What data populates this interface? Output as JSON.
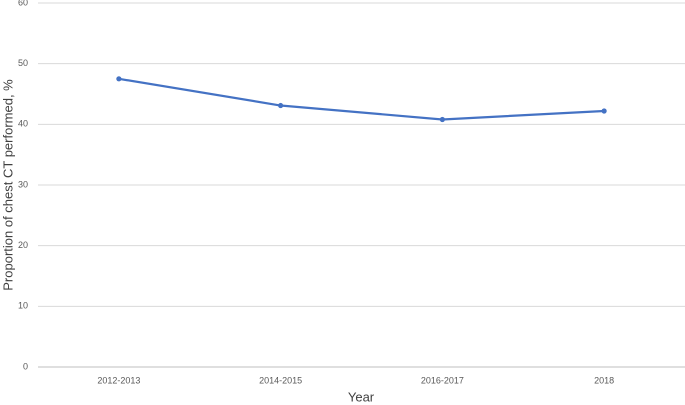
{
  "chart_data": {
    "type": "line",
    "categories": [
      "2012-2013",
      "2014-2015",
      "2016-2017",
      "2018"
    ],
    "series": [
      {
        "name": "Proportion of chest CT performed",
        "color": "#4472c4",
        "values": [
          47.5,
          43.1,
          40.8,
          42.2
        ]
      }
    ],
    "ylim": [
      0,
      60
    ],
    "yticks": [
      0,
      10,
      20,
      30,
      40,
      50,
      60
    ],
    "grid": true,
    "x_label": "Year",
    "y_label": "Proportion of chest CT performed, %"
  }
}
